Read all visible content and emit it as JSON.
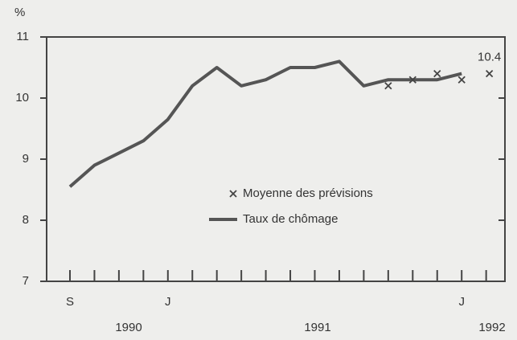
{
  "chart_data": {
    "type": "line",
    "y_label": "%",
    "categories": [
      "S",
      null,
      null,
      null,
      "J",
      null,
      null,
      null,
      null,
      null,
      null,
      null,
      null,
      null,
      null,
      null,
      "J",
      null
    ],
    "year_labels": [
      "1990",
      "1991",
      "1992"
    ],
    "series": [
      {
        "name": "Taux de chômage",
        "color": "#555555",
        "marker": "line",
        "values": [
          8.55,
          8.9,
          9.1,
          9.3,
          9.65,
          10.2,
          10.5,
          10.2,
          10.3,
          10.5,
          10.5,
          10.6,
          10.2,
          10.3,
          10.3,
          10.3,
          10.4,
          null
        ]
      },
      {
        "name": "Moyenne des prévisions",
        "color": "#444444",
        "marker": "x",
        "values": [
          null,
          null,
          null,
          null,
          null,
          null,
          null,
          null,
          null,
          null,
          null,
          null,
          null,
          10.2,
          10.3,
          10.4,
          10.3,
          10.4
        ]
      }
    ],
    "ylim": [
      7,
      11
    ],
    "yticks": [
      7,
      8,
      9,
      10,
      11
    ],
    "grid": false
  }
}
